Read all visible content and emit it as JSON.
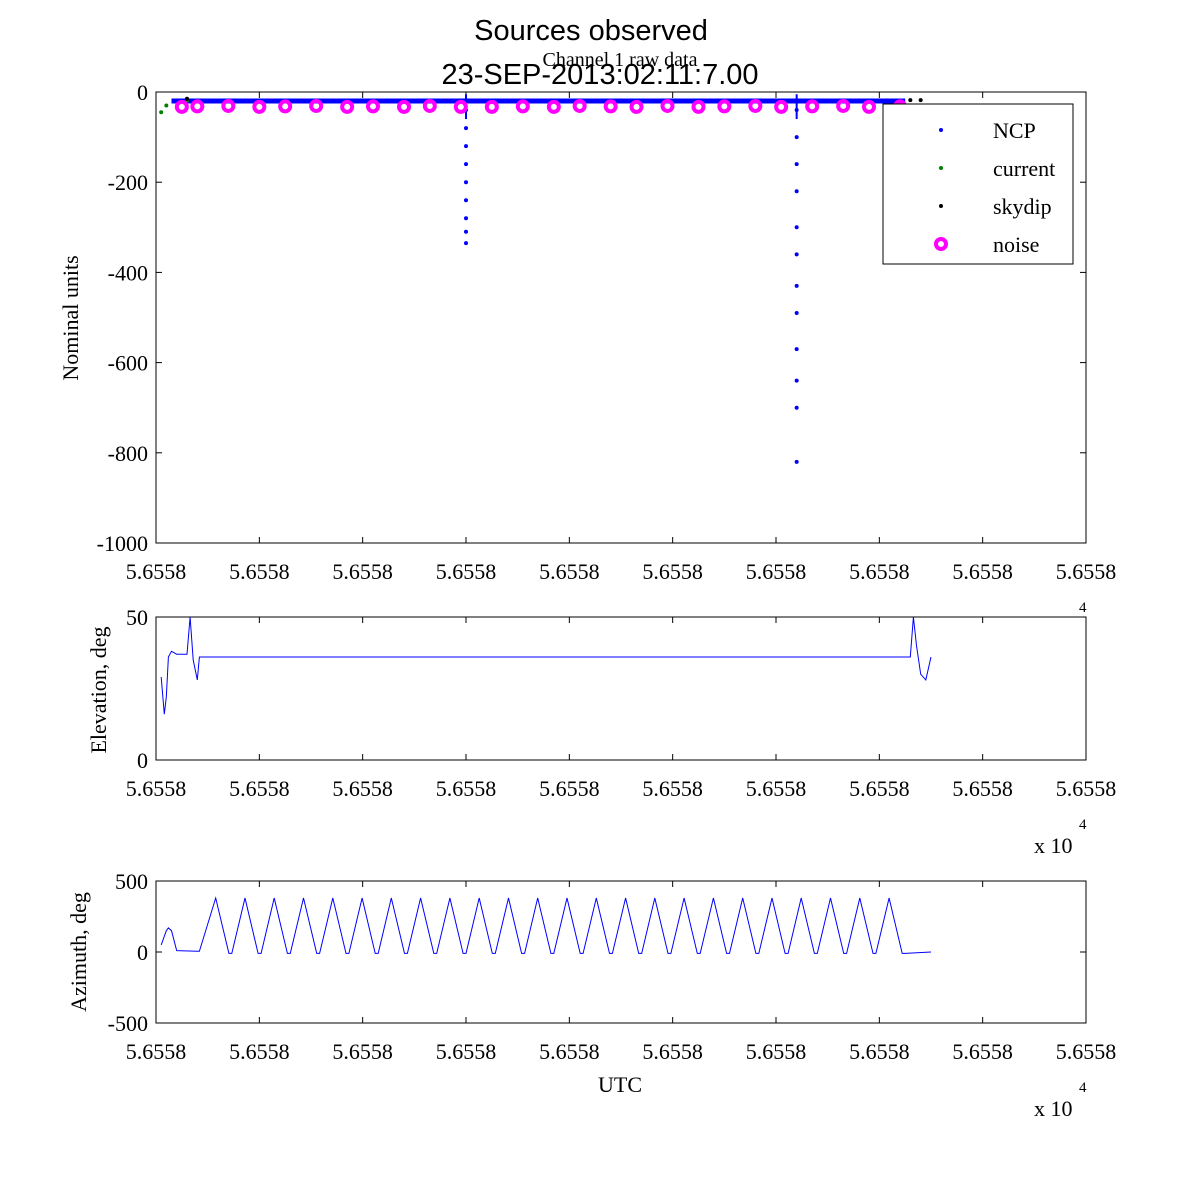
{
  "figure": {
    "title": "Sources observed",
    "subtitle": "23-SEP-2013:02:11:7.00"
  },
  "chart_data": [
    {
      "type": "scatter",
      "title": "Channel 1 raw data",
      "xlabel": "",
      "ylabel": "Nominal units",
      "xlim": [
        0,
        9
      ],
      "ylim": [
        -1000,
        0
      ],
      "x_tick_labels": [
        "5.6558",
        "5.6558",
        "5.6558",
        "5.6558",
        "5.6558",
        "5.6558",
        "5.6558",
        "5.6558",
        "5.6558",
        "5.6558"
      ],
      "y_tick_labels": [
        "0",
        "-200",
        "-400",
        "-600",
        "-800",
        "-1000"
      ],
      "y_ticks": [
        0,
        -200,
        -400,
        -600,
        -800,
        -1000
      ],
      "legend": {
        "position": "top-right"
      },
      "series": [
        {
          "name": "NCP",
          "color": "#0000ff",
          "marker": "dot",
          "x": [
            3.0,
            3.0,
            3.0,
            3.0,
            3.0,
            3.0,
            3.0,
            3.0,
            3.0,
            6.2,
            6.2,
            6.2,
            6.2,
            6.2,
            6.2,
            6.2,
            6.2,
            6.2,
            6.2,
            6.2,
            6.2
          ],
          "y": [
            -40,
            -80,
            -120,
            -160,
            -200,
            -240,
            -280,
            -310,
            -335,
            -40,
            -100,
            -160,
            -220,
            -300,
            -360,
            -430,
            -490,
            -570,
            -640,
            -700,
            -820
          ]
        },
        {
          "name": "current",
          "color": "#008000",
          "marker": "dot",
          "x": [
            0.05,
            0.1,
            0.3
          ],
          "y": [
            -45,
            -30,
            -20
          ]
        },
        {
          "name": "skydip",
          "color": "#000000",
          "marker": "dot",
          "x": [
            0.3,
            7.3,
            7.4
          ],
          "y": [
            -15,
            -18,
            -18
          ]
        },
        {
          "name": "noise",
          "color": "#ff00ff",
          "marker": "circle",
          "x": [
            0.25,
            0.4,
            0.7,
            1.0,
            1.25,
            1.55,
            1.85,
            2.1,
            2.4,
            2.65,
            2.95,
            3.25,
            3.55,
            3.85,
            4.1,
            4.4,
            4.65,
            4.95,
            5.25,
            5.5,
            5.8,
            6.05,
            6.35,
            6.65,
            6.9,
            7.2
          ],
          "y": [
            -33,
            -32,
            -31,
            -33,
            -32,
            -31,
            -33,
            -32,
            -33,
            -31,
            -33,
            -33,
            -32,
            -33,
            -31,
            -32,
            -33,
            -31,
            -33,
            -32,
            -31,
            -33,
            -32,
            -31,
            -33,
            -32
          ]
        }
      ]
    },
    {
      "type": "line",
      "title": "",
      "xlabel": "",
      "ylabel": "Elevation, deg",
      "xlim": [
        0,
        9
      ],
      "ylim": [
        0,
        50
      ],
      "x_tick_labels": [
        "5.6558",
        "5.6558",
        "5.6558",
        "5.6558",
        "5.6558",
        "5.6558",
        "5.6558",
        "5.6558",
        "5.6558",
        "5.6558"
      ],
      "y_tick_labels": [
        "0",
        "50"
      ],
      "y_ticks": [
        0,
        50
      ],
      "exponent_label": "x 10",
      "exponent_power": "4",
      "series": [
        {
          "color": "#0000ff",
          "x": [
            0.05,
            0.08,
            0.1,
            0.12,
            0.15,
            0.2,
            0.3,
            0.33,
            0.36,
            0.4,
            0.42,
            0.45,
            7.3,
            7.33,
            7.36,
            7.4,
            7.45,
            7.5
          ],
          "y": [
            29,
            16,
            22,
            36,
            38,
            37,
            37,
            50,
            35,
            28,
            36,
            36,
            36,
            50,
            40,
            30,
            28,
            36
          ]
        }
      ]
    },
    {
      "type": "line",
      "title": "",
      "xlabel": "UTC",
      "ylabel": "Azimuth, deg",
      "xlim": [
        0,
        9
      ],
      "ylim": [
        -500,
        500
      ],
      "x_tick_labels": [
        "5.6558",
        "5.6558",
        "5.6558",
        "5.6558",
        "5.6558",
        "5.6558",
        "5.6558",
        "5.6558",
        "5.6558",
        "5.6558"
      ],
      "y_tick_labels": [
        "500",
        "0",
        "-500"
      ],
      "y_ticks": [
        500,
        0,
        -500
      ],
      "exponent_label": "x 10",
      "exponent_power": "4",
      "series": [
        {
          "color": "#0000ff",
          "x": [
            0.05,
            0.1,
            0.12,
            0.15,
            0.2,
            0.4,
            0.42
          ],
          "y": [
            50,
            150,
            170,
            150,
            10,
            5,
            5
          ],
          "zigzag": {
            "start": 0.45,
            "end": 7.25,
            "cycles": 24,
            "high": 380,
            "low": -10,
            "tail_x": 7.5,
            "tail_y": 0
          }
        }
      ]
    }
  ]
}
